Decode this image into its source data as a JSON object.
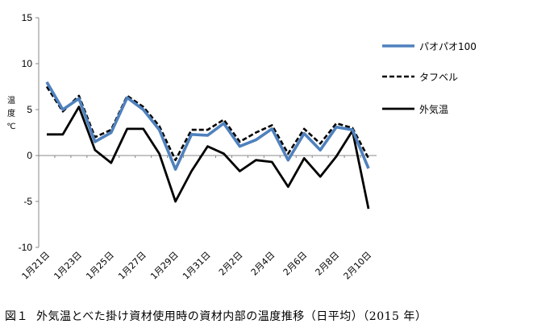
{
  "caption": {
    "label": "図１",
    "text": "外気温とべた掛け資材使用時の資材内部の温度推移（日平均）（2015 年）"
  },
  "chart_data": {
    "type": "line",
    "ylabel": "温度℃",
    "ylim": [
      -10,
      15
    ],
    "yticks": [
      -10,
      -5,
      0,
      5,
      10,
      15
    ],
    "grid": false,
    "legend_position": "right",
    "x": [
      "1月21日",
      "1月22日",
      "1月23日",
      "1月24日",
      "1月25日",
      "1月26日",
      "1月27日",
      "1月28日",
      "1月29日",
      "1月30日",
      "1月31日",
      "2月1日",
      "2月2日",
      "2月3日",
      "2月4日",
      "2月5日",
      "2月6日",
      "2月7日",
      "2月8日",
      "2月9日",
      "2月10日"
    ],
    "tick_labels": [
      "1月21日",
      "1月23日",
      "1月25日",
      "1月27日",
      "1月29日",
      "1月31日",
      "2月2日",
      "2月4日",
      "2月6日",
      "2月8日",
      "2月10日"
    ],
    "series": [
      {
        "name": "パオパオ100",
        "color": "#4f81bd",
        "style": "solid-thick",
        "values": [
          8.0,
          5.0,
          6.2,
          1.5,
          2.5,
          6.3,
          5.0,
          2.8,
          -1.5,
          2.3,
          2.2,
          3.5,
          1.0,
          1.7,
          2.9,
          -0.5,
          2.4,
          0.6,
          3.1,
          2.8,
          -1.4
        ]
      },
      {
        "name": "タフベル",
        "color": "#000000",
        "style": "dashed",
        "values": [
          7.5,
          4.8,
          6.5,
          2.0,
          2.8,
          6.5,
          5.3,
          3.2,
          -0.5,
          2.8,
          2.8,
          3.9,
          1.5,
          2.5,
          3.3,
          0.2,
          2.9,
          1.3,
          3.5,
          3.0,
          -0.3
        ]
      },
      {
        "name": "外気温",
        "color": "#000000",
        "style": "solid",
        "values": [
          2.3,
          2.3,
          5.3,
          0.6,
          -0.8,
          2.9,
          2.9,
          0.2,
          -5.0,
          -1.7,
          1.0,
          0.2,
          -1.7,
          -0.5,
          -0.7,
          -3.4,
          -0.3,
          -2.3,
          -0.1,
          2.7,
          -5.8
        ]
      }
    ]
  }
}
